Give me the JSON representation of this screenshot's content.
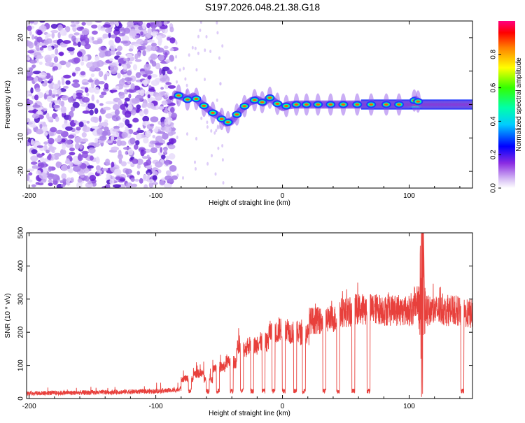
{
  "title": "S197.2026.048.21.38.G18",
  "chart_data": [
    {
      "type": "heatmap",
      "name": "spectrogram",
      "xlabel": "Height of straight line (km)",
      "ylabel": "Frequency (Hz)",
      "xlim": [
        -202,
        150
      ],
      "ylim": [
        -25,
        25
      ],
      "xticks": [
        -200,
        -100,
        0,
        100
      ],
      "yticks": [
        -20,
        -10,
        0,
        10,
        20
      ],
      "noise_region_x": [
        -202,
        -85
      ],
      "signal_track": [
        [
          -85,
          3
        ],
        [
          -80,
          2.5
        ],
        [
          -75,
          1.5
        ],
        [
          -70,
          2.5
        ],
        [
          -65,
          0.5
        ],
        [
          -60,
          -1
        ],
        [
          -55,
          -2.5
        ],
        [
          -50,
          -3.5
        ],
        [
          -45,
          -5.5
        ],
        [
          -40,
          -5
        ],
        [
          -35,
          -2.5
        ],
        [
          -30,
          -0.5
        ],
        [
          -25,
          1
        ],
        [
          -20,
          1.5
        ],
        [
          -15,
          0.5
        ],
        [
          -10,
          2
        ],
        [
          -5,
          0.5
        ],
        [
          0,
          -0.8
        ],
        [
          5,
          -0.2
        ],
        [
          10,
          0
        ],
        [
          20,
          0
        ],
        [
          30,
          0
        ],
        [
          40,
          0
        ],
        [
          50,
          0
        ],
        [
          60,
          0
        ],
        [
          70,
          0
        ],
        [
          80,
          0
        ],
        [
          90,
          0
        ],
        [
          100,
          0
        ],
        [
          105,
          1.5
        ],
        [
          110,
          0
        ],
        [
          120,
          0
        ],
        [
          130,
          0
        ],
        [
          140,
          0
        ],
        [
          150,
          0
        ]
      ],
      "steady_carrier_from_x": 62,
      "colorbar": {
        "label": "Normalized spectral amplitude",
        "min": 0,
        "max": 1,
        "ticks": [
          0.0,
          0.2,
          0.4,
          0.6,
          0.8
        ]
      }
    },
    {
      "type": "line",
      "name": "snr",
      "xlabel": "Height of straight line (km)",
      "ylabel": "SNR (10 * v/v)",
      "xlim": [
        -202,
        150
      ],
      "ylim": [
        0,
        500
      ],
      "xticks": [
        -200,
        -100,
        0,
        100
      ],
      "yticks": [
        0,
        100,
        200,
        300,
        400,
        500
      ],
      "series": [
        {
          "name": "SNR",
          "color": "#e8403c",
          "baseline": [
            [
              -202,
              16
            ],
            [
              -150,
              18
            ],
            [
              -100,
              22
            ],
            [
              -85,
              25
            ],
            [
              -80,
              30
            ]
          ],
          "segments": [
            {
              "x": [
                -80,
                -70
              ],
              "level": 60
            },
            {
              "x": [
                -70,
                -62
              ],
              "level": 75
            },
            {
              "x": [
                -62,
                -55
              ],
              "level": 55
            },
            {
              "x": [
                -55,
                -45
              ],
              "level": 95
            },
            {
              "x": [
                -45,
                -36
              ],
              "level": 110
            },
            {
              "x": [
                -36,
                -28
              ],
              "level": 150
            },
            {
              "x": [
                -28,
                -20
              ],
              "level": 160
            },
            {
              "x": [
                -20,
                -11
              ],
              "level": 170
            },
            {
              "x": [
                -11,
                -3
              ],
              "level": 200
            },
            {
              "x": [
                -3,
                5
              ],
              "level": 210
            },
            {
              "x": [
                5,
                14
              ],
              "level": 200
            },
            {
              "x": [
                14,
                21
              ],
              "level": 195
            },
            {
              "x": [
                21,
                33
              ],
              "level": 235
            },
            {
              "x": [
                33,
                44
              ],
              "level": 240
            },
            {
              "x": [
                44,
                56
              ],
              "level": 260
            },
            {
              "x": [
                56,
                68
              ],
              "level": 270
            },
            {
              "x": [
                68,
                80
              ],
              "level": 270
            },
            {
              "x": [
                80,
                104
              ],
              "level": 265
            },
            {
              "x": [
                104,
                112
              ],
              "level": 290
            },
            {
              "x": [
                112,
                140
              ],
              "level": 265
            },
            {
              "x": [
                140,
                150
              ],
              "level": 255
            }
          ],
          "dropouts": [
            -73,
            -59,
            -51,
            -40,
            -32,
            -24,
            -15,
            -7,
            1,
            10,
            17,
            33,
            44,
            56,
            68,
            142
          ],
          "spike": {
            "x": 110,
            "peak": 500,
            "min": 60
          }
        }
      ]
    }
  ]
}
